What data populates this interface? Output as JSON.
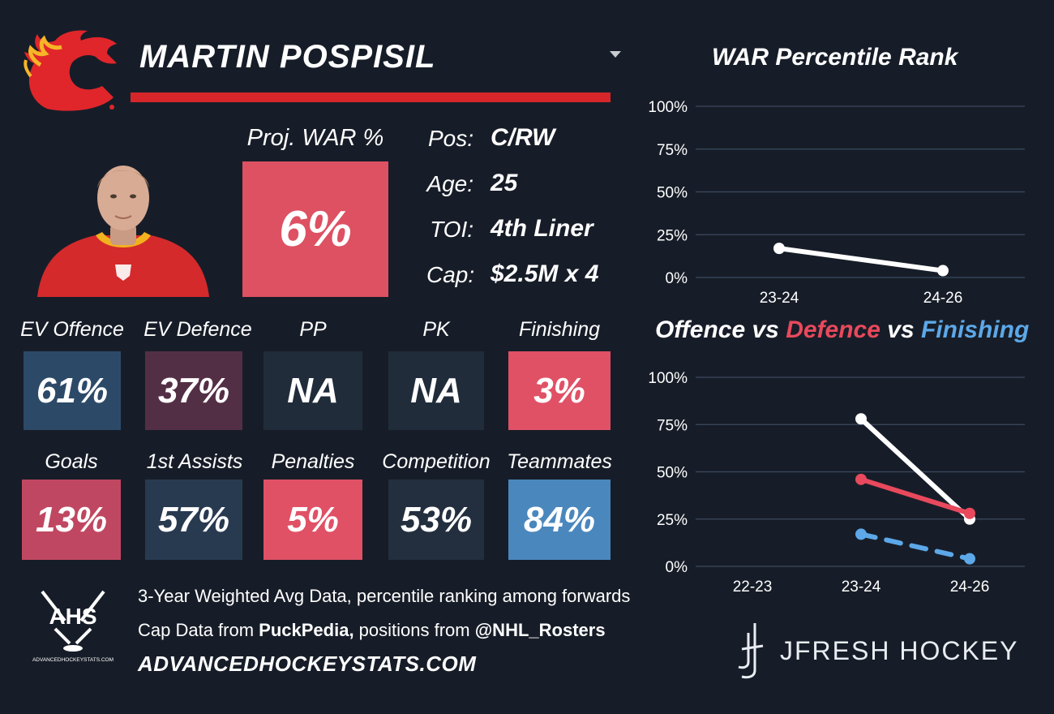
{
  "player": {
    "name": "MARTIN POSPISIL"
  },
  "proj_war": {
    "label": "Proj. WAR %",
    "value": "6%",
    "color": "#dd5162"
  },
  "info": [
    {
      "label": "Pos:",
      "value": "C/RW"
    },
    {
      "label": "Age:",
      "value": "25"
    },
    {
      "label": "TOI:",
      "value": "4th Liner"
    },
    {
      "label": "Cap:",
      "value": "$2.5M x 4"
    }
  ],
  "tiles_row1": [
    {
      "label": "EV Offence",
      "value": "61%",
      "color": "#2c4a68"
    },
    {
      "label": "EV Defence",
      "value": "37%",
      "color": "#532f45"
    },
    {
      "label": "PP",
      "value": "NA",
      "color": "#202c3a"
    },
    {
      "label": "PK",
      "value": "NA",
      "color": "#202c3a"
    },
    {
      "label": "Finishing",
      "value": "3%",
      "color": "#e05166"
    }
  ],
  "tiles_row2": [
    {
      "label": "Goals",
      "value": "13%",
      "color": "#c04761"
    },
    {
      "label": "1st Assists",
      "value": "57%",
      "color": "#283a50"
    },
    {
      "label": "Penalties",
      "value": "5%",
      "color": "#e05166"
    },
    {
      "label": "Competition",
      "value": "53%",
      "color": "#232f3e"
    },
    {
      "label": "Teammates",
      "value": "84%",
      "color": "#4a87bd"
    }
  ],
  "footer": {
    "line1": "3-Year Weighted Avg Data, percentile ranking among forwards",
    "line2_prefix": "Cap Data from ",
    "line2_bold1": "PuckPedia,",
    "line2_mid": " positions from ",
    "line2_bold2": "@NHL_Rosters",
    "site": "ADVANCEDHOCKEYSTATS.COM",
    "ahs_logo_text": "AHS",
    "ahs_small": "ADVANCEDHOCKEYSTATS.COM"
  },
  "brand": {
    "name": "JFRESH HOCKEY"
  },
  "colors": {
    "background": "#171d28",
    "flames_red": "#d7262a",
    "offence_line": "#ffffff",
    "defence_line": "#e8495c",
    "finishing_line": "#5ca8e8",
    "grid": "#3b4a5e"
  },
  "chart_data": [
    {
      "type": "line",
      "title": "WAR Percentile Rank",
      "categories": [
        "23-24",
        "24-26"
      ],
      "series": [
        {
          "values": [
            17,
            4
          ]
        }
      ],
      "ylim": [
        0,
        100
      ],
      "yticks": [
        "100%",
        "75%",
        "50%",
        "25%",
        "0%"
      ],
      "grid": true
    },
    {
      "type": "line",
      "title": "Offence vs Defence vs Finishing",
      "title_parts": [
        "Offence",
        " vs ",
        "Defence",
        " vs ",
        "Finishing"
      ],
      "categories": [
        "22-23",
        "23-24",
        "24-26"
      ],
      "series": [
        {
          "name": "Offence",
          "values": [
            null,
            78,
            25
          ]
        },
        {
          "name": "Defence",
          "values": [
            null,
            46,
            28
          ]
        },
        {
          "name": "Finishing",
          "values": [
            null,
            17,
            4
          ]
        }
      ],
      "ylim": [
        0,
        100
      ],
      "yticks": [
        "100%",
        "75%",
        "50%",
        "25%",
        "0%"
      ],
      "grid": true
    }
  ]
}
